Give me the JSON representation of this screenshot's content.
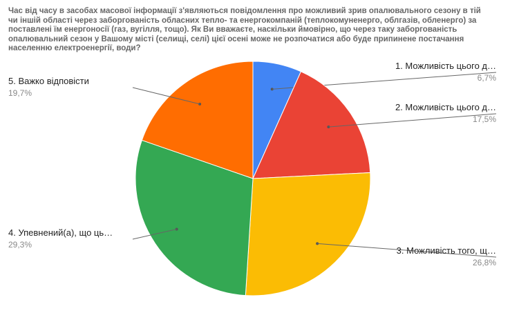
{
  "chart_data": {
    "type": "pie",
    "title": "Час від часу в засобах масової інформації з'являються повідомлення про можливий зрив опалювального сезону в тій чи іншій області через заборгованість обласних тепло- та енергокомпаній (теплокомуненерго, облгазів, обленерго) за поставлені їм енергоносії (газ, вугілля, тощо). Як Ви вважаєте, наскільки ймовірно, що через таку заборгованість опалювальний сезон у Вашому місті (селищі, селі) цієї осені може не розпочатися або буде припинене постачання населенню електроенергії, води?",
    "slices": [
      {
        "label": "1. Можливість цього д…",
        "value": 6.7,
        "display": "6,7%",
        "color": "#4285f4"
      },
      {
        "label": "2. Можливість цього д…",
        "value": 17.5,
        "display": "17,5%",
        "color": "#ea4335"
      },
      {
        "label": "3. Можливість того, щ…",
        "value": 26.8,
        "display": "26,8%",
        "color": "#fbbc04"
      },
      {
        "label": "4. Упевнений(а), що ць…",
        "value": 29.3,
        "display": "29,3%",
        "color": "#34a853"
      },
      {
        "label": "5. Важко відповісти",
        "value": 19.7,
        "display": "19,7%",
        "color": "#ff6d01"
      }
    ]
  }
}
